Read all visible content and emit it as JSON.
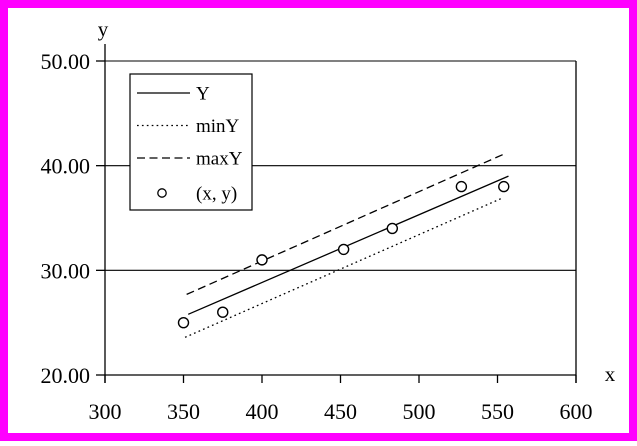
{
  "window": {
    "border_color": "#ff00ff",
    "background_color": "#ffffff"
  },
  "chart_data": {
    "type": "line",
    "title": "",
    "xlabel": "x",
    "ylabel": "y",
    "xlim": [
      300,
      600
    ],
    "ylim": [
      20,
      50
    ],
    "x_ticks": [
      300,
      350,
      400,
      450,
      500,
      550,
      600
    ],
    "x_tick_labels": [
      "300",
      "350",
      "400",
      "450",
      "500",
      "550",
      "600"
    ],
    "y_ticks": [
      20,
      30,
      40,
      50
    ],
    "y_tick_labels": [
      "20.00",
      "30.00",
      "40.00",
      "50.00"
    ],
    "grid": "horizontal-only",
    "axis_color": "#000000",
    "series": [
      {
        "name": "Y",
        "style": "solid",
        "color": "#000000",
        "x": [
          353,
          557
        ],
        "y": [
          25.8,
          39.0
        ]
      },
      {
        "name": "minY",
        "style": "dotted",
        "color": "#000000",
        "x": [
          351,
          553
        ],
        "y": [
          23.6,
          36.9
        ]
      },
      {
        "name": "maxY",
        "style": "dashed",
        "color": "#000000",
        "x": [
          352,
          554
        ],
        "y": [
          27.7,
          41.1
        ]
      }
    ],
    "scatter": {
      "name": "(x, y)",
      "marker": "open-circle",
      "color": "#000000",
      "points": [
        {
          "x": 350,
          "y": 25
        },
        {
          "x": 375,
          "y": 26
        },
        {
          "x": 400,
          "y": 31
        },
        {
          "x": 452,
          "y": 32
        },
        {
          "x": 483,
          "y": 34
        },
        {
          "x": 527,
          "y": 38
        },
        {
          "x": 554,
          "y": 38
        }
      ]
    },
    "legend": {
      "position": "upper-left",
      "entries": [
        {
          "label": "Y",
          "sample": "solid-line"
        },
        {
          "label": "minY",
          "sample": "dotted-line"
        },
        {
          "label": "maxY",
          "sample": "dashed-line"
        },
        {
          "label": "(x, y)",
          "sample": "circle-marker"
        }
      ]
    }
  }
}
